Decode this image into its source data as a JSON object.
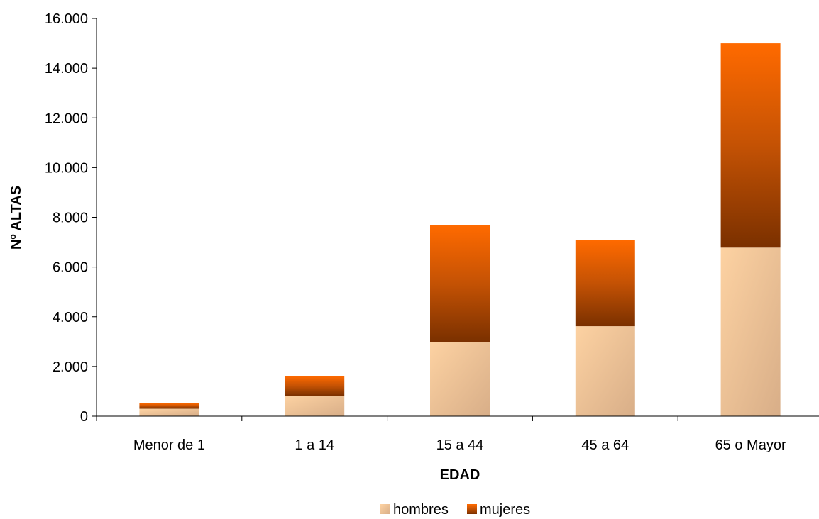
{
  "chart_data": {
    "type": "bar",
    "stacked": true,
    "categories": [
      "Menor de 1",
      "1 a 14",
      "15 a 44",
      "45 a 64",
      "65 o Mayor"
    ],
    "series": [
      {
        "name": "hombres",
        "values": [
          300,
          820,
          2980,
          3620,
          6780
        ],
        "color": "#f5c898"
      },
      {
        "name": "mujeres",
        "values": [
          220,
          790,
          4700,
          3460,
          8220
        ],
        "color": "#ff6a00"
      }
    ],
    "xlabel": "EDAD",
    "ylabel": "Nº ALTAS",
    "ylim": [
      0,
      16000
    ],
    "yticks": [
      0,
      2000,
      4000,
      6000,
      8000,
      10000,
      12000,
      14000,
      16000
    ],
    "ytick_labels": [
      "0",
      "2.000",
      "4.000",
      "6.000",
      "8.000",
      "10.000",
      "12.000",
      "14.000",
      "16.000"
    ],
    "grid": false,
    "legend_position": "bottom"
  }
}
